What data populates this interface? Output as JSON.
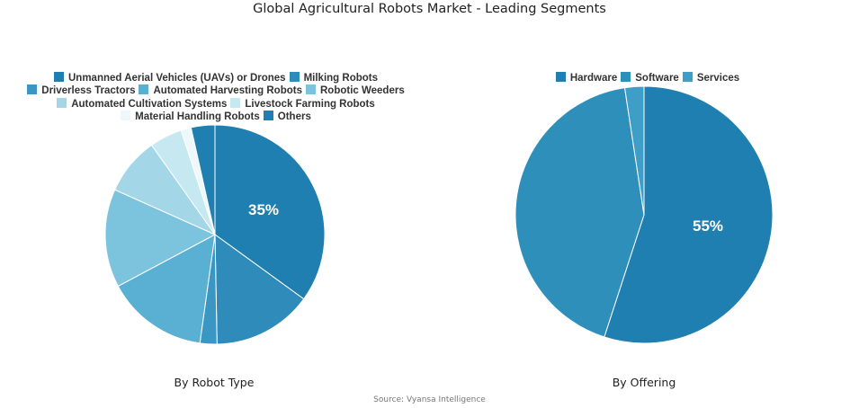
{
  "title": "Global Agricultural Robots Market - Leading Segments",
  "source": "Source: Vyansa Intelligence",
  "chart_data": [
    {
      "type": "pie",
      "subtitle": "By Robot Type",
      "categories": [
        "Unmanned Aerial Vehicles (UAVs) or Drones",
        "Milking Robots",
        "Driverless Tractors",
        "Automated Harvesting Robots",
        "Robotic Weeders",
        "Automated Cultivation Systems",
        "Livestock Farming Robots",
        "Material Handling Robots",
        "Others"
      ],
      "values": [
        35,
        14.7,
        2.5,
        15,
        14.5,
        8.5,
        4.8,
        1.5,
        3.5
      ],
      "colors": [
        "#1f7fb0",
        "#2e8bba",
        "#3a96c2",
        "#5ab0d2",
        "#7cc3dd",
        "#a3d7e7",
        "#c6e8f0",
        "#eef8fb",
        "#1f7fb0"
      ],
      "label_value": "35%",
      "legend_position": "top"
    },
    {
      "type": "pie",
      "subtitle": "By Offering",
      "categories": [
        "Hardware",
        "Software",
        "Services"
      ],
      "values": [
        55,
        42.6,
        2.4
      ],
      "colors": [
        "#1f7fb0",
        "#2e8fba",
        "#3f9ec8"
      ],
      "label_value": "55%",
      "legend_position": "top"
    }
  ]
}
